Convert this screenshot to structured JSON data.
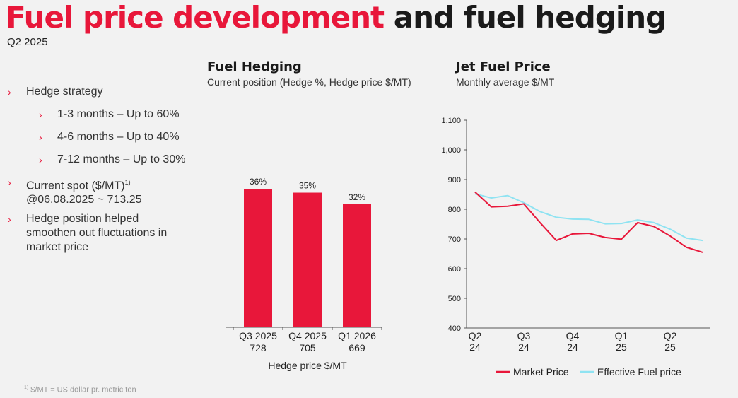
{
  "page": {
    "title_accent": "Fuel price development",
    "title_rest": "and fuel hedging",
    "date": "Q2 2025",
    "footnote_mark": "1)",
    "footnote_text": " $/MT = US dollar pr. metric ton"
  },
  "bullets": {
    "strategy": "Hedge strategy",
    "sub1": "1-3 months – Up to 60%",
    "sub2": "4-6 months – Up to 40%",
    "sub3": "7-12 months – Up to 30%",
    "spot_line1": "Current spot ($/MT)",
    "spot_mark": "1)",
    "spot_line2": "@06.08.2025 ~ 713.25",
    "position_line1": "Hedge position helped",
    "position_line2": "smoothen out fluctuations in",
    "position_line3": "market price",
    "chevron": "›"
  },
  "hedging": {
    "title": "Fuel Hedging",
    "subtitle": "Current position (Hedge %, Hedge price $/MT)"
  },
  "jetfuel": {
    "title": "Jet Fuel Price",
    "subtitle": "Monthly average $/MT"
  },
  "colors": {
    "accent": "#e8173a",
    "market": "#e8173a",
    "effective": "#8fe3f2"
  },
  "chart_data": [
    {
      "type": "bar",
      "title": "Fuel Hedging",
      "xlabel": "Hedge price $/MT",
      "categories": [
        "Q3 2025",
        "Q4 2025",
        "Q1 2026"
      ],
      "category_prices": [
        "728",
        "705",
        "669"
      ],
      "values": [
        36,
        35,
        32
      ],
      "value_labels": [
        "36%",
        "35%",
        "32%"
      ],
      "ylim": [
        0,
        52
      ]
    },
    {
      "type": "line",
      "title": "Jet Fuel Price",
      "ylim": [
        400,
        1100
      ],
      "yticks": [
        400,
        500,
        600,
        700,
        800,
        900,
        1000,
        1100
      ],
      "ytick_labels": [
        "400",
        "500",
        "600",
        "700",
        "800",
        "900",
        "1,000",
        "1,100"
      ],
      "x_ticks": [
        {
          "index": 0,
          "line1": "Q2",
          "line2": "24"
        },
        {
          "index": 3,
          "line1": "Q3",
          "line2": "24"
        },
        {
          "index": 6,
          "line1": "Q4",
          "line2": "24"
        },
        {
          "index": 9,
          "line1": "Q1",
          "line2": "25"
        },
        {
          "index": 12,
          "line1": "Q2",
          "line2": "25"
        }
      ],
      "n_points": 15,
      "series": [
        {
          "name": "Market Price",
          "color": "#e8173a",
          "values": [
            858,
            808,
            810,
            818,
            755,
            695,
            717,
            719,
            705,
            699,
            755,
            742,
            710,
            672,
            655
          ]
        },
        {
          "name": "Effective Fuel price",
          "color": "#8fe3f2",
          "values": [
            852,
            838,
            846,
            822,
            792,
            773,
            767,
            766,
            751,
            752,
            764,
            755,
            733,
            703,
            695
          ]
        }
      ],
      "legend_position": "bottom"
    }
  ]
}
